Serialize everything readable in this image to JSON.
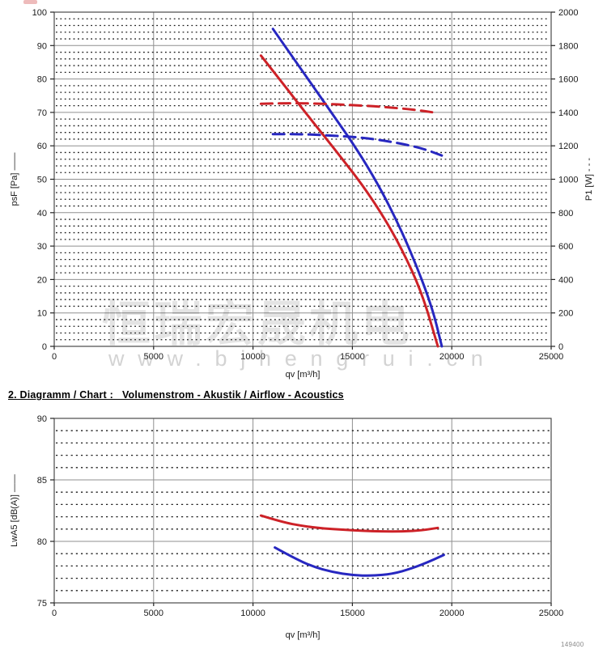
{
  "page": {
    "heading2": "2. Diagramm / Chart :   Volumenstrom - Akustik / Airflow - Acoustics",
    "watermark_cn": "恒瑞宏晟机电",
    "watermark_url": "www.bjhengrui.cn",
    "corner_text": "149400"
  },
  "colors": {
    "red": "#cd2127",
    "blue": "#2727c0",
    "grid_major": "#8f8f8f",
    "grid_minor": "#1c1c1c",
    "frame": "#4a4a4a",
    "tick": "#222222"
  },
  "chart_data": [
    {
      "type": "line",
      "title": "Volumenstrom - Druck / Leistung (Airflow - Pressure / Power)",
      "xlabel": "qv [m³/h]",
      "ylabel_left": "psF [Pa] ——",
      "ylabel_right": "P1 [W] - - -",
      "xlim": [
        0,
        25000
      ],
      "x_major": 5000,
      "ylim_left": [
        0,
        100
      ],
      "y_major_left": 10,
      "y_minor_left": 2,
      "ylim_right": [
        0,
        2000
      ],
      "y_major_right": 200,
      "grid": "on",
      "legend_position": "axis-titles",
      "series": [
        {
          "name": "psF-red-solid",
          "axis": "left",
          "color": "red",
          "style": "solid",
          "points": [
            [
              10400,
              87
            ],
            [
              11500,
              78.7
            ],
            [
              12500,
              71
            ],
            [
              13500,
              63.5
            ],
            [
              14500,
              56
            ],
            [
              15500,
              48.3
            ],
            [
              16500,
              39.5
            ],
            [
              17500,
              29
            ],
            [
              18500,
              16
            ],
            [
              19300,
              0
            ]
          ]
        },
        {
          "name": "psF-blue-solid",
          "axis": "left",
          "color": "blue",
          "style": "solid",
          "points": [
            [
              11000,
              95
            ],
            [
              12000,
              86.5
            ],
            [
              13000,
              78
            ],
            [
              14000,
              69.5
            ],
            [
              15000,
              61
            ],
            [
              16000,
              51.5
            ],
            [
              17000,
              40.5
            ],
            [
              18000,
              27.5
            ],
            [
              19000,
              12
            ],
            [
              19500,
              0
            ]
          ]
        },
        {
          "name": "P1-red-dashed",
          "axis": "right",
          "color": "red",
          "style": "dashed",
          "points": [
            [
              10400,
              1452
            ],
            [
              12000,
              1456
            ],
            [
              13500,
              1452
            ],
            [
              15000,
              1444
            ],
            [
              16500,
              1434
            ],
            [
              18000,
              1418
            ],
            [
              19300,
              1396
            ]
          ]
        },
        {
          "name": "P1-blue-dashed",
          "axis": "right",
          "color": "blue",
          "style": "dashed",
          "points": [
            [
              11000,
              1270
            ],
            [
              12500,
              1270
            ],
            [
              14000,
              1261
            ],
            [
              15500,
              1250
            ],
            [
              17000,
              1224
            ],
            [
              18500,
              1186
            ],
            [
              19500,
              1142
            ]
          ]
        }
      ]
    },
    {
      "type": "line",
      "title": "Volumenstrom - Akustik / Airflow - Acoustics",
      "xlabel": "qv [m³/h]",
      "ylabel_left": "LwA5 [dB(A)] ——",
      "xlim": [
        0,
        25000
      ],
      "x_major": 5000,
      "ylim_left": [
        75,
        90
      ],
      "y_major_left": 5,
      "y_minor_left": 1,
      "grid": "on",
      "series": [
        {
          "name": "LwA5-red-solid",
          "axis": "left",
          "color": "red",
          "style": "solid",
          "points": [
            [
              10400,
              82.1
            ],
            [
              11500,
              81.55
            ],
            [
              12500,
              81.25
            ],
            [
              13500,
              81.05
            ],
            [
              14500,
              80.95
            ],
            [
              15500,
              80.85
            ],
            [
              16500,
              80.8
            ],
            [
              17500,
              80.8
            ],
            [
              18500,
              80.9
            ],
            [
              19300,
              81.1
            ]
          ]
        },
        {
          "name": "LwA5-blue-solid",
          "axis": "left",
          "color": "blue",
          "style": "solid",
          "points": [
            [
              11100,
              79.5
            ],
            [
              12000,
              78.7
            ],
            [
              13000,
              77.95
            ],
            [
              14000,
              77.5
            ],
            [
              15000,
              77.25
            ],
            [
              16000,
              77.2
            ],
            [
              17000,
              77.35
            ],
            [
              18000,
              77.8
            ],
            [
              19000,
              78.45
            ],
            [
              19600,
              78.9
            ]
          ]
        }
      ]
    }
  ]
}
